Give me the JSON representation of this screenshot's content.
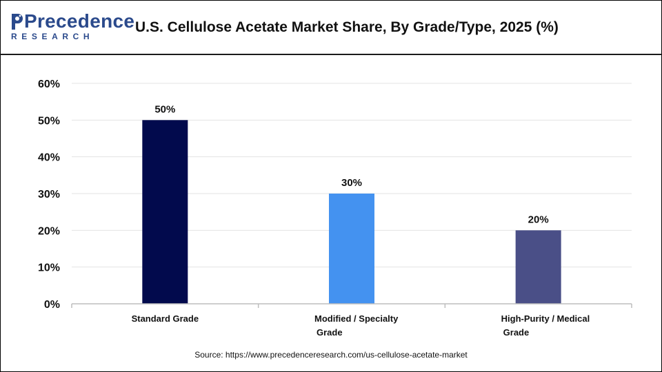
{
  "brand": {
    "logo_name": "Precedence",
    "logo_tagline": "RESEARCH",
    "colors": {
      "brand": "#2b4a8c"
    }
  },
  "chart_data": {
    "type": "bar",
    "title": "U.S. Cellulose Acetate Market Share, By Grade/Type, 2025 (%)",
    "xlabel": "",
    "ylabel": "",
    "categories": [
      "Standard Grade",
      "Modified / Specialty Grade",
      "High-Purity / Medical Grade"
    ],
    "values": [
      50,
      30,
      20
    ],
    "value_labels": [
      "50%",
      "30%",
      "20%"
    ],
    "bar_colors": [
      "#020a4d",
      "#4492f0",
      "#4a4f87"
    ],
    "ylim": [
      0,
      60
    ],
    "yticks": [
      0,
      10,
      20,
      30,
      40,
      50,
      60
    ],
    "ytick_labels": [
      "0%",
      "10%",
      "20%",
      "30%",
      "40%",
      "50%",
      "60%"
    ],
    "grid": true,
    "legend": "none"
  },
  "source": "Source: https://www.precedenceresearch.com/us-cellulose-acetate-market"
}
